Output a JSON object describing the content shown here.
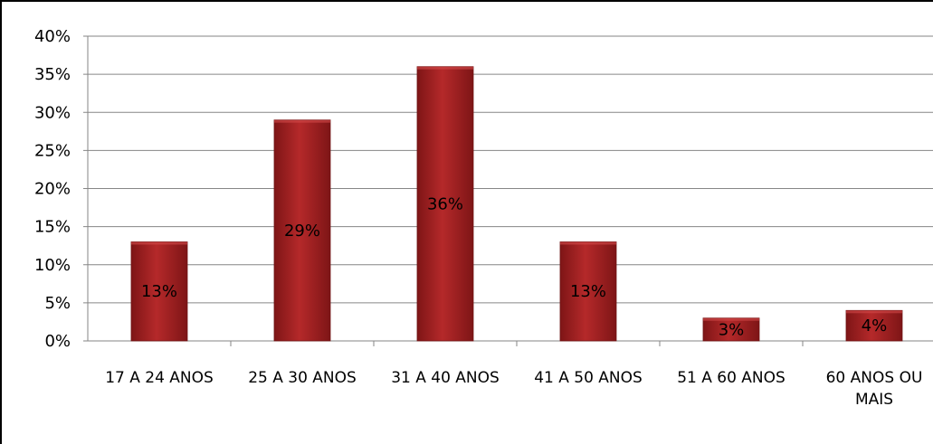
{
  "chart_data": {
    "type": "bar",
    "categories": [
      [
        "17 A 24 ANOS"
      ],
      [
        "25 A 30 ANOS"
      ],
      [
        "31 A 40 ANOS"
      ],
      [
        "41 A 50 ANOS"
      ],
      [
        "51 A 60 ANOS"
      ],
      [
        "60 ANOS OU",
        "MAIS"
      ]
    ],
    "values": [
      13,
      29,
      36,
      13,
      3,
      4
    ],
    "data_labels": [
      "13%",
      "29%",
      "36%",
      "13%",
      "3%",
      "4%"
    ],
    "y_ticks": [
      "0%",
      "5%",
      "10%",
      "15%",
      "20%",
      "25%",
      "30%",
      "35%",
      "40%"
    ],
    "ylim": [
      0,
      40
    ],
    "grid": true,
    "legend": "none",
    "bar_color": "#B5292A",
    "bar_color_dark": "#7E1516",
    "grid_color": "#868686"
  }
}
